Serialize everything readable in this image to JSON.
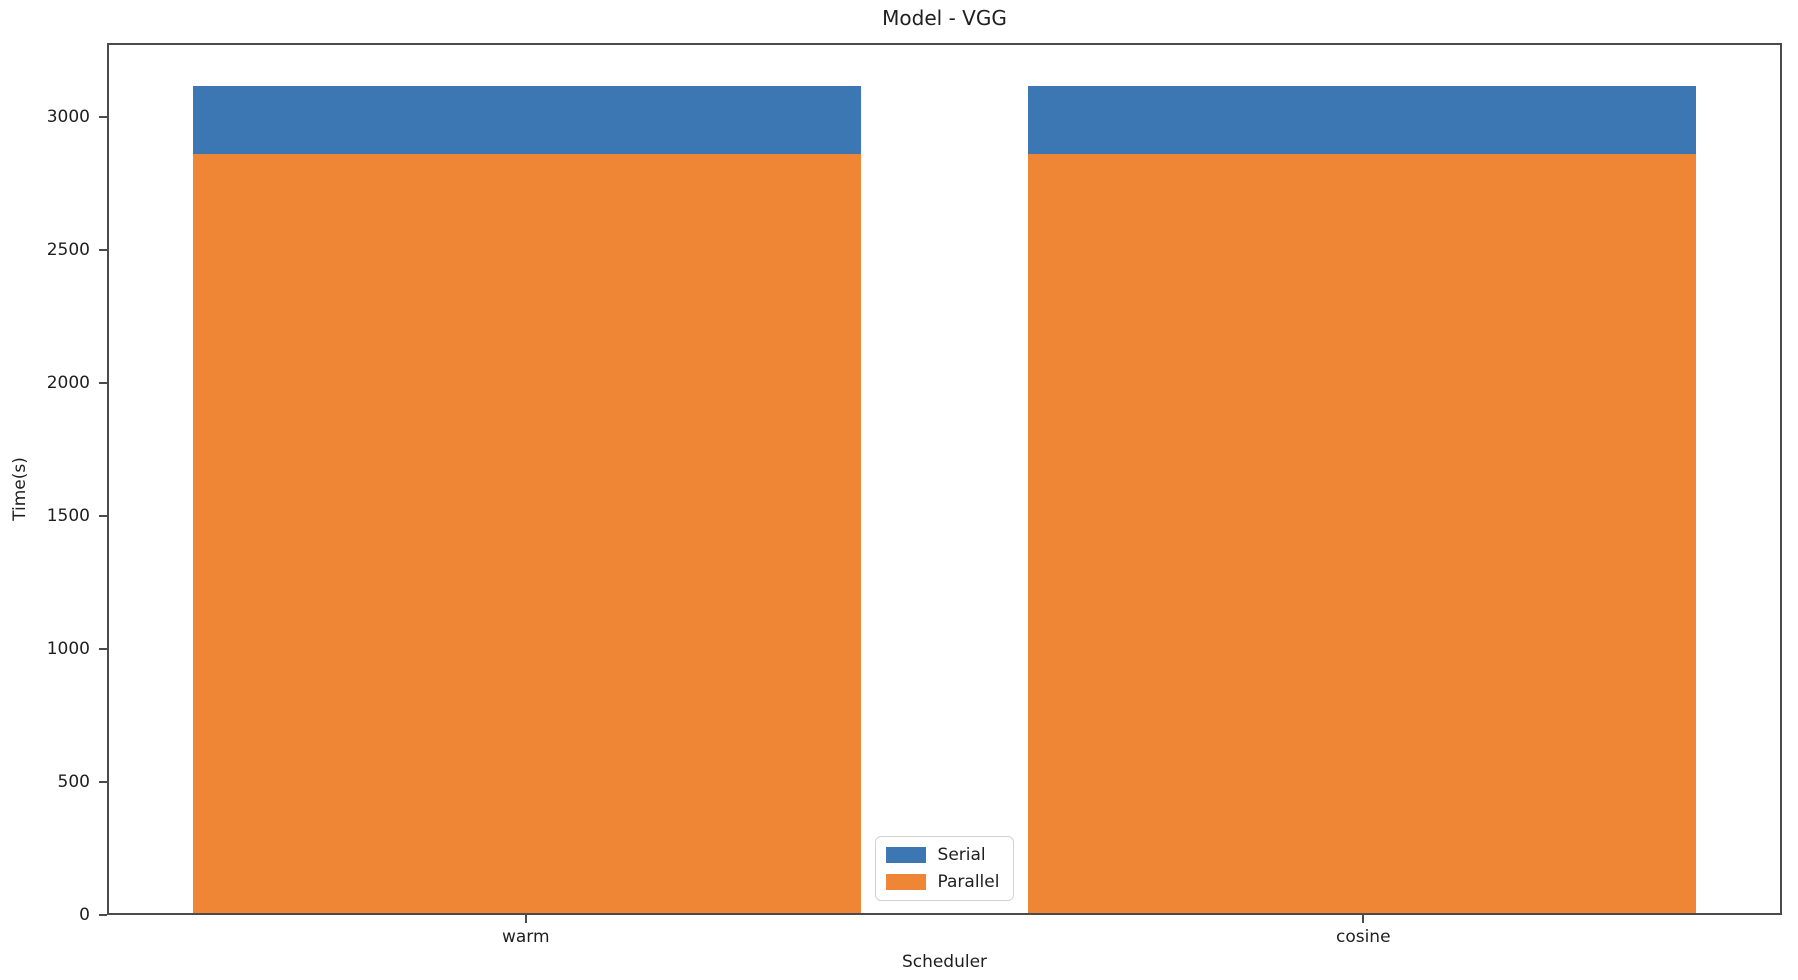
{
  "title": "Model - VGG",
  "axes": {
    "xlabel": "Scheduler",
    "ylabel": "Time(s)"
  },
  "legend": {
    "entries": [
      {
        "label": "Serial",
        "color": "#3d77b3"
      },
      {
        "label": "Parallel",
        "color": "#ee8635"
      }
    ]
  },
  "chart_data": {
    "type": "bar",
    "mode": "overlay",
    "title": "Model - VGG",
    "xlabel": "Scheduler",
    "ylabel": "Time(s)",
    "categories": [
      "warm",
      "cosine"
    ],
    "series": [
      {
        "name": "Serial",
        "color": "#3d77b3",
        "values": [
          3125,
          3125
        ]
      },
      {
        "name": "Parallel",
        "color": "#ee8635",
        "values": [
          2870,
          2870
        ]
      }
    ],
    "ylim": [
      0,
      3280
    ],
    "yticks": [
      0,
      500,
      1000,
      1500,
      2000,
      2500,
      3000
    ],
    "bar_width_frac": 0.8,
    "grid": false,
    "legend_position": "lower center inside"
  }
}
